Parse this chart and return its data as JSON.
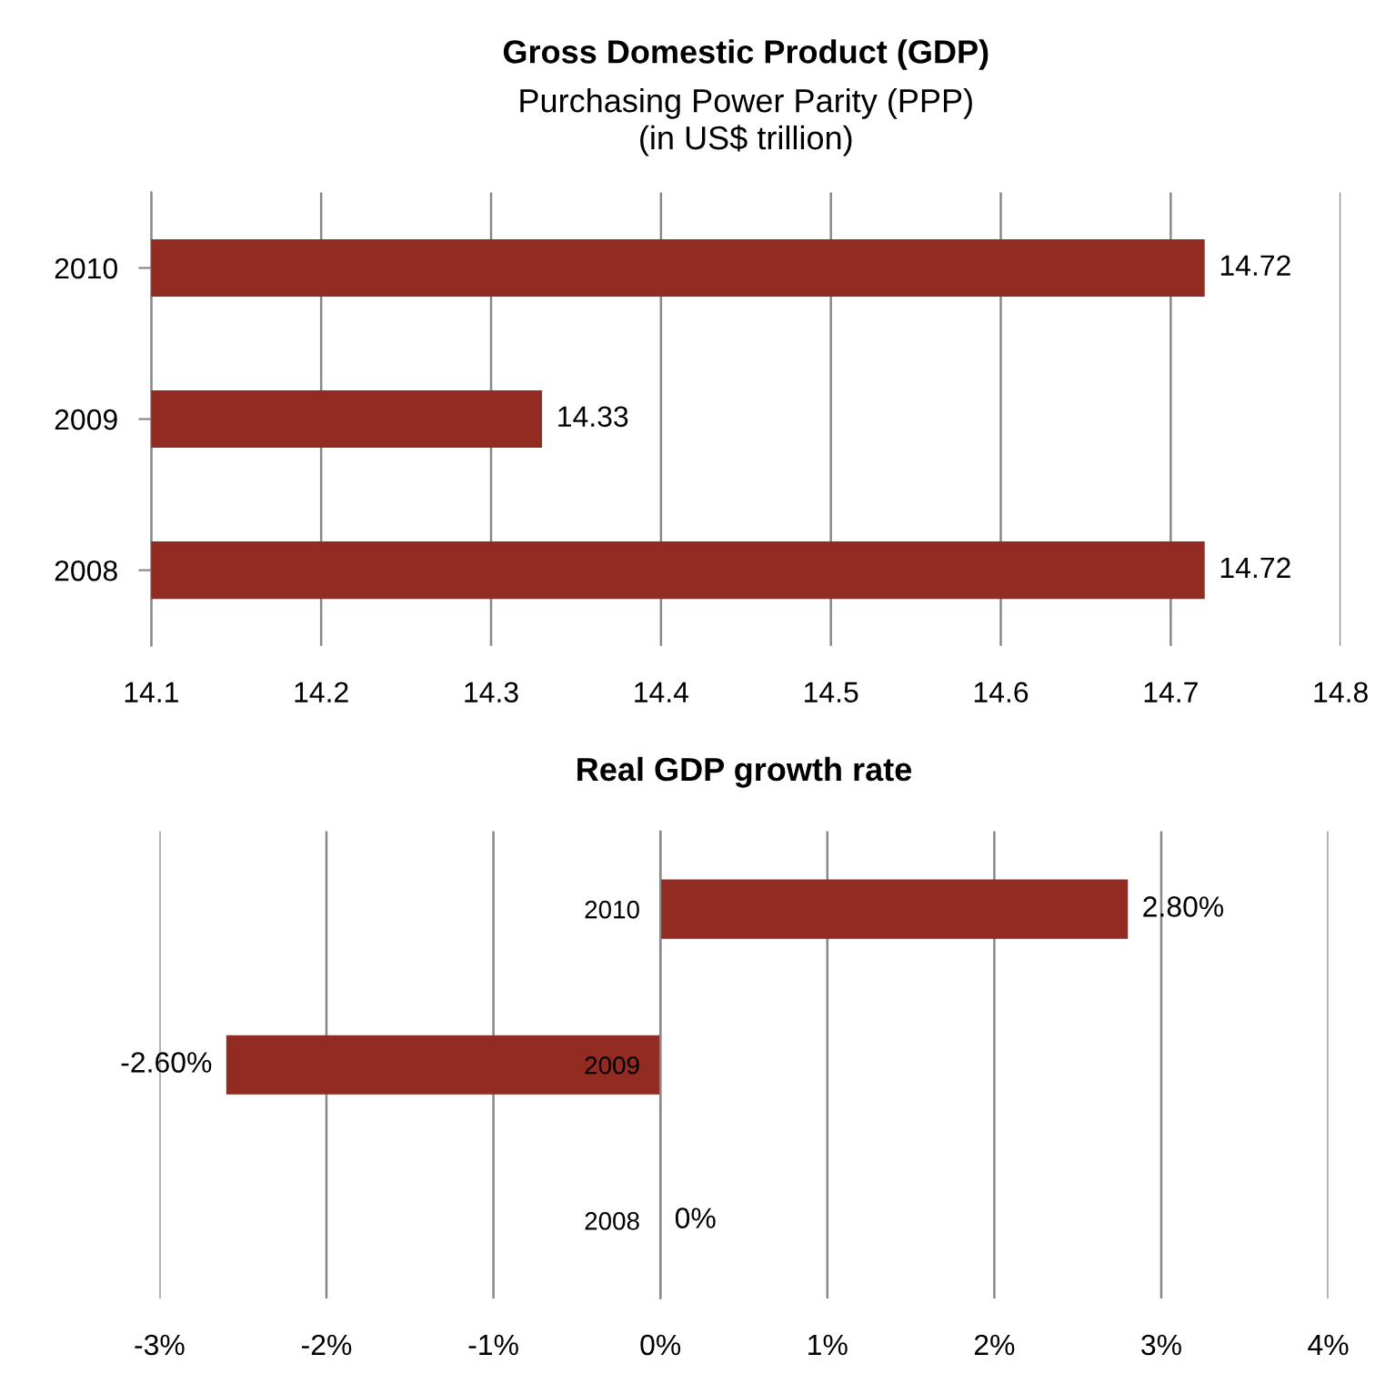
{
  "chart_data": [
    {
      "type": "bar",
      "orientation": "horizontal",
      "title": "Gross Domestic Product (GDP)",
      "subtitle": "Purchasing Power Parity (PPP)\n(in US$ trillion)",
      "categories": [
        "2010",
        "2009",
        "2008"
      ],
      "values": [
        14.72,
        14.33,
        14.72
      ],
      "color": "#922b21",
      "xlim": [
        14.1,
        14.8
      ],
      "xticks": [
        14.1,
        14.2,
        14.3,
        14.4,
        14.5,
        14.6,
        14.7,
        14.8
      ],
      "grid": "x",
      "data_labels": true
    },
    {
      "type": "bar",
      "orientation": "horizontal",
      "title": "Real GDP growth rate",
      "categories": [
        "2010",
        "2009",
        "2008"
      ],
      "values": [
        2.8,
        -2.6,
        0
      ],
      "value_labels": [
        "2.80%",
        "-2.60%",
        "0%"
      ],
      "color": "#922b21",
      "xlim": [
        -3,
        4
      ],
      "xticks": [
        {
          "value": -3,
          "label": "-3%"
        },
        {
          "value": -2,
          "label": "-2%"
        },
        {
          "value": -1,
          "label": "-1%"
        },
        {
          "value": 0,
          "label": "0%"
        },
        {
          "value": 1,
          "label": "1%"
        },
        {
          "value": 2,
          "label": "2%"
        },
        {
          "value": 3,
          "label": "3%"
        },
        {
          "value": 4,
          "label": "4%"
        }
      ],
      "grid": "x"
    }
  ]
}
